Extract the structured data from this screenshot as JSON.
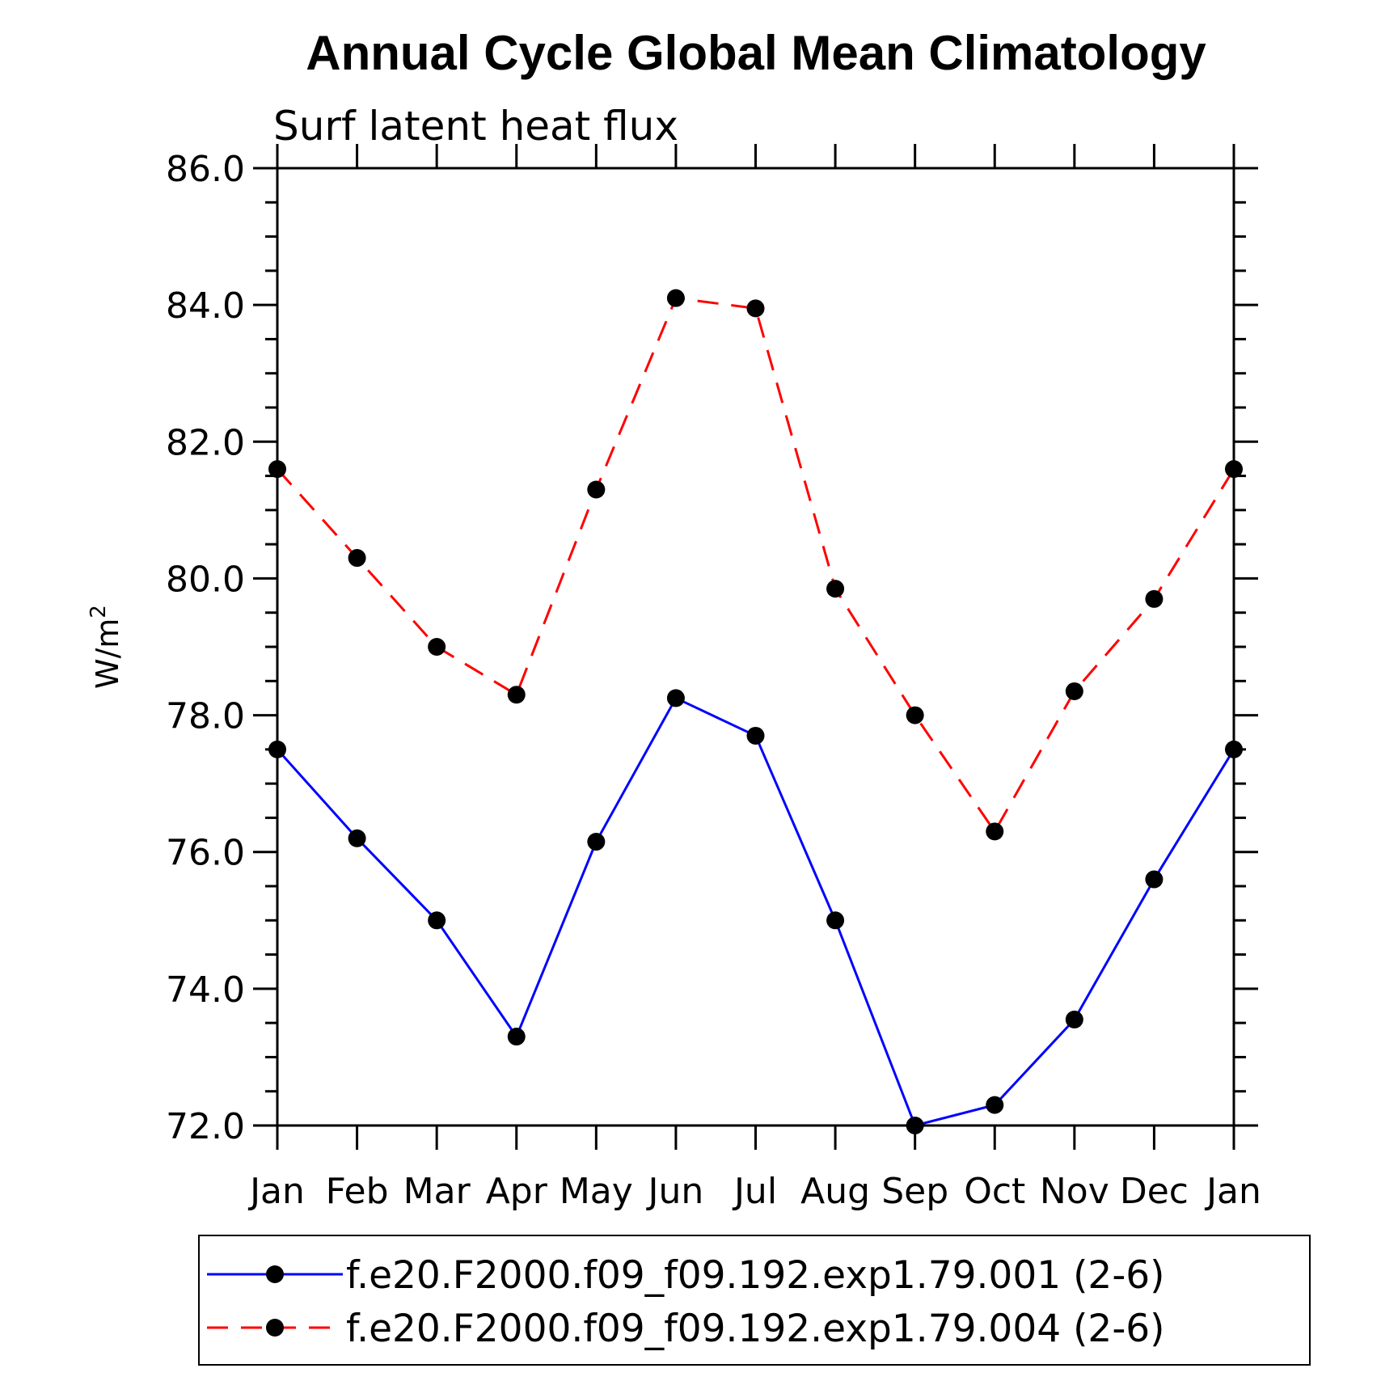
{
  "chart_data": {
    "type": "line",
    "title": "Annual Cycle Global Mean Climatology",
    "subtitle": "Surf latent heat flux",
    "xlabel": "",
    "ylabel": "W/m",
    "ylabel_superscript": "2",
    "categories": [
      "Jan",
      "Feb",
      "Mar",
      "Apr",
      "May",
      "Jun",
      "Jul",
      "Aug",
      "Sep",
      "Oct",
      "Nov",
      "Dec",
      "Jan"
    ],
    "ylim": [
      72.0,
      86.0
    ],
    "yticks": [
      "72.0",
      "74.0",
      "76.0",
      "78.0",
      "80.0",
      "82.0",
      "84.0",
      "86.0"
    ],
    "grid": false,
    "legend_position": "bottom",
    "series": [
      {
        "name": "f.e20.F2000.f09_f09.192.exp1.79.001 (2-6)",
        "color": "#0000ff",
        "line_style": "solid",
        "marker": "filled-circle",
        "values": [
          77.5,
          76.2,
          75.0,
          73.3,
          76.15,
          78.25,
          77.7,
          75.0,
          72.0,
          72.3,
          73.55,
          75.6,
          77.5
        ]
      },
      {
        "name": "f.e20.F2000.f09_f09.192.exp1.79.004 (2-6)",
        "color": "#ff0000",
        "line_style": "dashed",
        "marker": "filled-circle",
        "values": [
          81.6,
          80.3,
          79.0,
          78.3,
          81.3,
          84.1,
          83.95,
          79.85,
          78.0,
          76.3,
          78.35,
          79.7,
          81.6
        ]
      }
    ]
  }
}
